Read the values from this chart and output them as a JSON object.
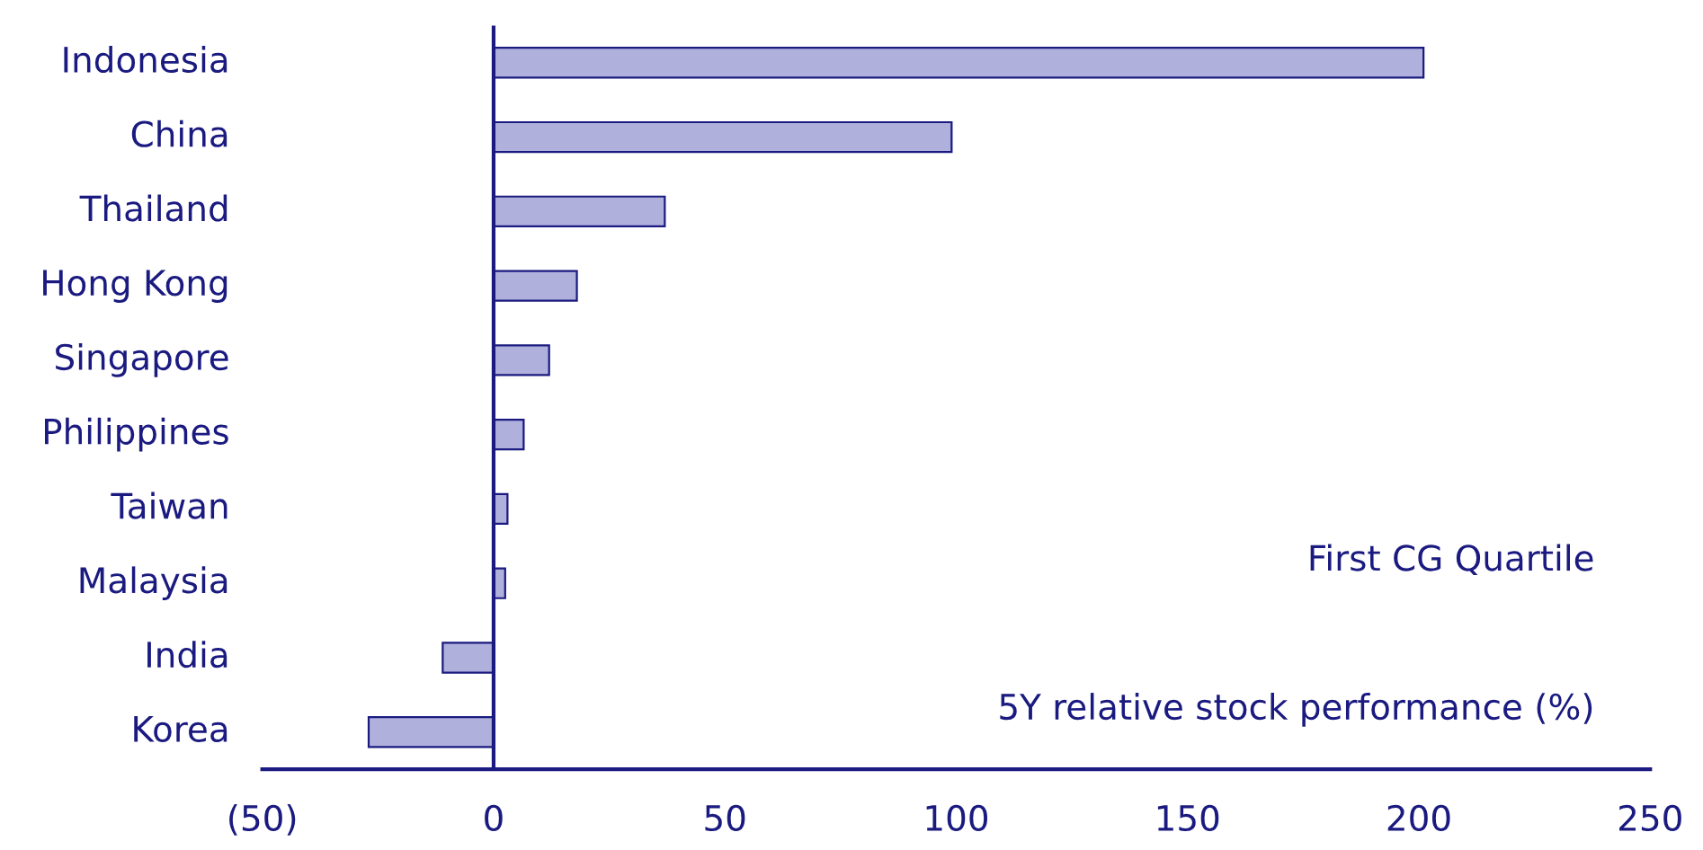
{
  "chart_data": {
    "type": "bar",
    "orientation": "horizontal",
    "categories": [
      "Indonesia",
      "China",
      "Thailand",
      "Hong Kong",
      "Singapore",
      "Philippines",
      "Taiwan",
      "Malaysia",
      "India",
      "Korea"
    ],
    "series": [
      {
        "color": "#b0b0dc",
        "values": [
          201,
          99,
          37,
          18,
          12,
          6.5,
          3,
          2.5,
          -11,
          -27
        ]
      }
    ],
    "xlim": [
      -50,
      250
    ],
    "xticks": [
      {
        "value": -50,
        "label": "(50)"
      },
      0,
      50,
      100,
      150,
      200,
      250
    ],
    "annotations": [
      "First CG Quartile",
      "5Y relative stock performance (%)"
    ],
    "ref_lines": [
      {
        "axis": "x",
        "value": 0
      }
    ],
    "grid": false,
    "legend": false
  }
}
